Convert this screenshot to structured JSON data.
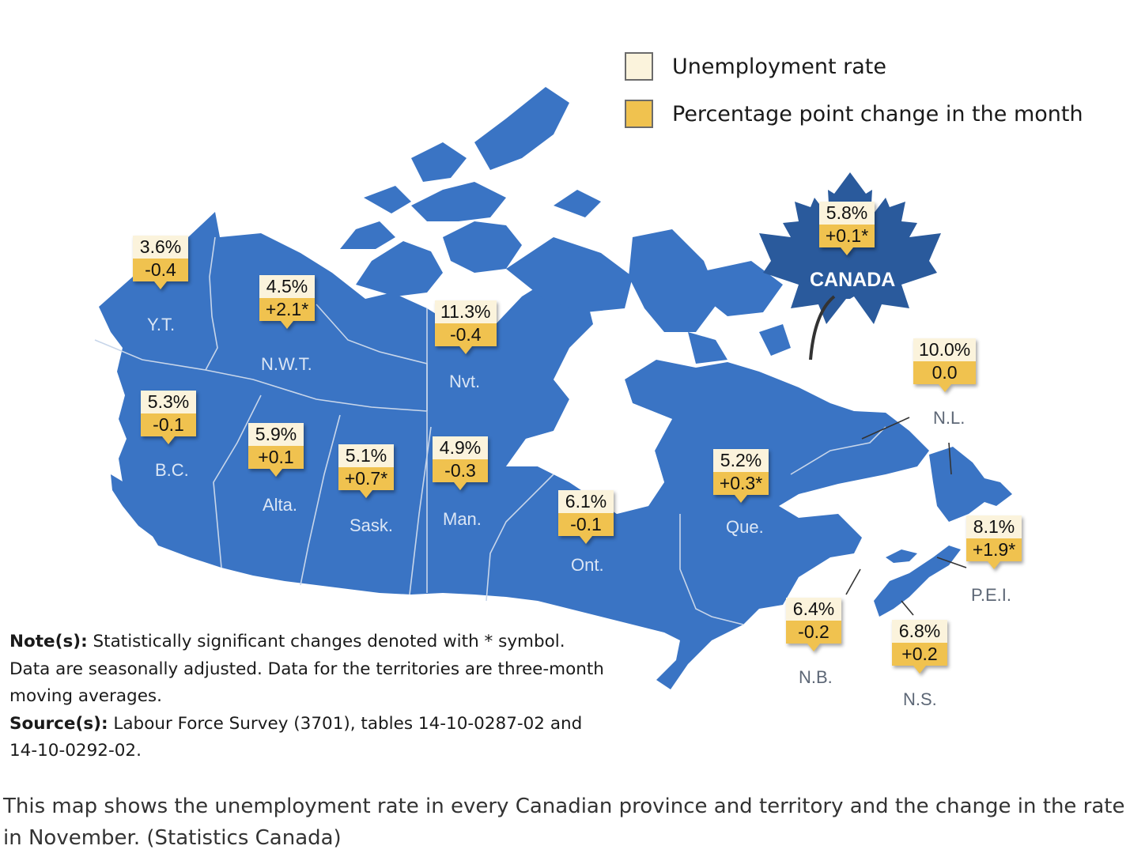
{
  "legend": {
    "rate_label": "Unemployment rate",
    "change_label": "Percentage point change in the month",
    "rate_color": "#fbf3dc",
    "change_color": "#f0c24f"
  },
  "map_color": "#3a74c4",
  "canada": {
    "rate": "5.8%",
    "change": "+0.1*",
    "label": "CANADA"
  },
  "regions": [
    {
      "id": "yt",
      "abbr": "Y.T.",
      "rate": "3.6%",
      "change": "-0.4"
    },
    {
      "id": "nwt",
      "abbr": "N.W.T.",
      "rate": "4.5%",
      "change": "+2.1*"
    },
    {
      "id": "nvt",
      "abbr": "Nvt.",
      "rate": "11.3%",
      "change": "-0.4"
    },
    {
      "id": "bc",
      "abbr": "B.C.",
      "rate": "5.3%",
      "change": "-0.1"
    },
    {
      "id": "alta",
      "abbr": "Alta.",
      "rate": "5.9%",
      "change": "+0.1"
    },
    {
      "id": "sask",
      "abbr": "Sask.",
      "rate": "5.1%",
      "change": "+0.7*"
    },
    {
      "id": "man",
      "abbr": "Man.",
      "rate": "4.9%",
      "change": "-0.3"
    },
    {
      "id": "ont",
      "abbr": "Ont.",
      "rate": "6.1%",
      "change": "-0.1"
    },
    {
      "id": "que",
      "abbr": "Que.",
      "rate": "5.2%",
      "change": "+0.3*"
    },
    {
      "id": "nl",
      "abbr": "N.L.",
      "rate": "10.0%",
      "change": "0.0"
    },
    {
      "id": "pei",
      "abbr": "P.E.I.",
      "rate": "8.1%",
      "change": "+1.9*"
    },
    {
      "id": "nb",
      "abbr": "N.B.",
      "rate": "6.4%",
      "change": "-0.2"
    },
    {
      "id": "ns",
      "abbr": "N.S.",
      "rate": "6.8%",
      "change": "+0.2"
    }
  ],
  "notes": {
    "note_heading": "Note(s):",
    "note_text": "Statistically significant changes denoted with * symbol. Data are seasonally adjusted. Data for the territories are three-month moving averages.",
    "source_heading": "Source(s):",
    "source_text": "Labour Force Survey (3701), tables 14-10-0287-02 and 14-10-0292-02."
  },
  "caption": "This map shows the unemployment rate in every Canadian province and territory and the change in the rate in November. (Statistics Canada)"
}
